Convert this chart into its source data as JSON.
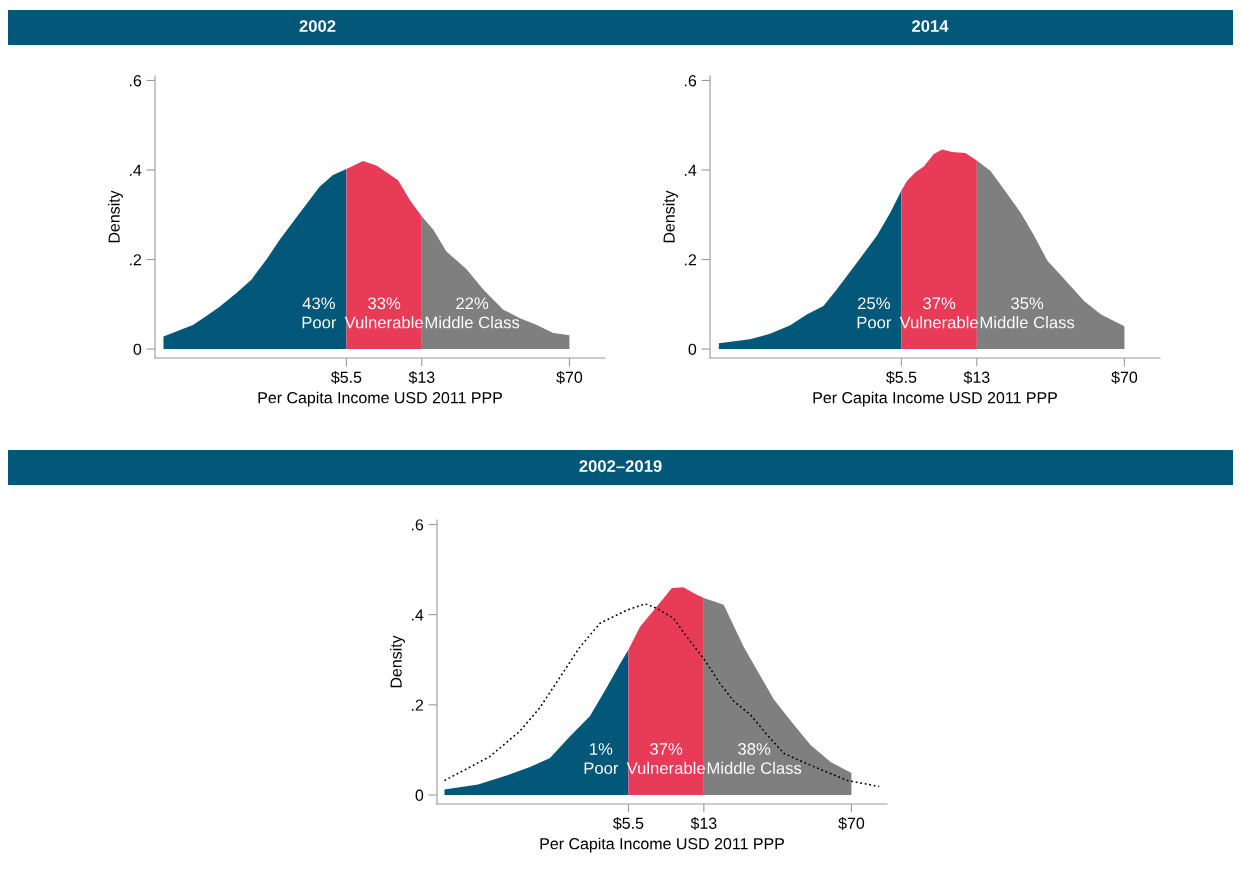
{
  "chart_data": [
    {
      "type": "area",
      "title": "2002",
      "xlabel": "Per Capita Income USD 2011 PPP",
      "ylabel": "Density",
      "log": "x",
      "xlim": [
        0.62,
        105
      ],
      "xticks": [
        {
          "value": 5.5,
          "label": "$5.5"
        },
        {
          "value": 13,
          "label": "$13"
        },
        {
          "value": 70,
          "label": "$70"
        }
      ],
      "ylim": [
        -0.02,
        0.61
      ],
      "yticks": [
        0,
        {
          "value": 0.2,
          "label": ".2"
        },
        {
          "value": 0.4,
          "label": ".4"
        },
        {
          "value": 0.6,
          "label": ".6"
        }
      ],
      "grid": false,
      "series": [
        {
          "color": "#03587a",
          "x": [
            0.683,
            0.955,
            1.11,
            1.29,
            1.57,
            1.86,
            2.21,
            2.57,
            3.23,
            4.06,
            4.72,
            5.5
          ],
          "values": [
            0.028,
            0.054,
            0.073,
            0.094,
            0.125,
            0.155,
            0.2,
            0.244,
            0.304,
            0.363,
            0.389,
            0.402
          ]
        },
        {
          "color": "#e83b57",
          "x": [
            5.5,
            6.65,
            7.75,
            9.92,
            11.3,
            13
          ],
          "values": [
            0.402,
            0.42,
            0.41,
            0.377,
            0.334,
            0.296
          ]
        },
        {
          "color": "#7f7f7f",
          "x": [
            13,
            14.8,
            17.2,
            21.6,
            26.2,
            32.9,
            39.8,
            48.2,
            58.2,
            70
          ],
          "values": [
            0.296,
            0.267,
            0.218,
            0.179,
            0.133,
            0.088,
            0.069,
            0.054,
            0.036,
            0.031
          ]
        }
      ],
      "annotations": [
        "43%\nPoor",
        "33%\nVulnerable",
        "22%\nMiddle Class"
      ]
    },
    {
      "type": "area",
      "title": "2014",
      "xlabel": "Per Capita Income USD 2011 PPP",
      "ylabel": "Density",
      "log": "x",
      "xlim": [
        0.62,
        105
      ],
      "xticks": [
        {
          "value": 5.5,
          "label": "$5.5"
        },
        {
          "value": 13,
          "label": "$13"
        },
        {
          "value": 70,
          "label": "$70"
        }
      ],
      "ylim": [
        -0.02,
        0.61
      ],
      "yticks": [
        0,
        {
          "value": 0.2,
          "label": ".2"
        },
        {
          "value": 0.4,
          "label": ".4"
        },
        {
          "value": 0.6,
          "label": ".6"
        }
      ],
      "grid": false,
      "series": [
        {
          "color": "#03587a",
          "x": [
            0.686,
            0.978,
            1.23,
            1.55,
            1.87,
            2.26,
            2.63,
            3.31,
            4.16,
            4.85,
            5.5
          ],
          "values": [
            0.013,
            0.022,
            0.034,
            0.053,
            0.077,
            0.096,
            0.133,
            0.193,
            0.253,
            0.305,
            0.354
          ]
        },
        {
          "color": "#e83b57",
          "x": [
            5.5,
            5.87,
            6.46,
            7.1,
            7.96,
            8.76,
            9.82,
            11.4,
            13
          ],
          "values": [
            0.354,
            0.376,
            0.395,
            0.408,
            0.436,
            0.446,
            0.44,
            0.438,
            0.421
          ]
        },
        {
          "color": "#7f7f7f",
          "x": [
            13,
            15.2,
            17.7,
            21.4,
            25.0,
            29.1,
            36.6,
            44.3,
            53.6,
            70
          ],
          "values": [
            0.421,
            0.398,
            0.357,
            0.305,
            0.253,
            0.197,
            0.148,
            0.107,
            0.077,
            0.051
          ]
        }
      ],
      "annotations": [
        "25%\nPoor",
        "37%\nVulnerable",
        "35%\nMiddle Class"
      ]
    },
    {
      "type": "area",
      "title": "2002–2019",
      "xlabel": "Per Capita Income USD 2011 PPP",
      "ylabel": "Density",
      "log": "x",
      "xlim": [
        0.62,
        105
      ],
      "xticks": [
        {
          "value": 5.5,
          "label": "$5.5"
        },
        {
          "value": 13,
          "label": "$13"
        },
        {
          "value": 70,
          "label": "$70"
        }
      ],
      "ylim": [
        -0.02,
        0.61
      ],
      "yticks": [
        0,
        {
          "value": 0.2,
          "label": ".2"
        },
        {
          "value": 0.4,
          "label": ".4"
        },
        {
          "value": 0.6,
          "label": ".6"
        }
      ],
      "grid": false,
      "series": [
        {
          "color": "#03587a",
          "x": [
            0.675,
            0.99,
            1.37,
            1.79,
            2.25,
            2.82,
            3.55,
            4.29,
            5.0,
            5.5
          ],
          "values": [
            0.012,
            0.023,
            0.043,
            0.062,
            0.082,
            0.13,
            0.175,
            0.238,
            0.291,
            0.322
          ]
        },
        {
          "color": "#e83b57",
          "x": [
            5.5,
            6.28,
            7.61,
            9.03,
            10.3,
            11.8,
            13
          ],
          "values": [
            0.322,
            0.373,
            0.418,
            0.459,
            0.461,
            0.446,
            0.437
          ]
        },
        {
          "color": "#7f7f7f",
          "x": [
            13,
            16.3,
            20.5,
            23.9,
            28.9,
            36.3,
            43.9,
            55.2,
            70
          ],
          "values": [
            0.437,
            0.422,
            0.328,
            0.276,
            0.212,
            0.156,
            0.111,
            0.073,
            0.049
          ]
        },
        {
          "type": "line",
          "line_style": "dotted",
          "color": "#000000",
          "x": [
            0.675,
            1.13,
            1.59,
            2.0,
            2.52,
            3.16,
            3.98,
            5.4,
            6.66,
            7.61,
            9.2,
            10.7,
            13.0,
            15.7,
            18.3,
            22.1,
            26.8,
            32.4,
            43.9,
            66.8,
            96.0
          ],
          "values": [
            0.032,
            0.085,
            0.141,
            0.193,
            0.261,
            0.328,
            0.381,
            0.41,
            0.424,
            0.414,
            0.392,
            0.351,
            0.302,
            0.246,
            0.208,
            0.178,
            0.133,
            0.092,
            0.066,
            0.032,
            0.019
          ]
        }
      ],
      "annotations": [
        "1%\nPoor",
        "37%\nVulnerable",
        "38%\nMiddle Class"
      ]
    }
  ]
}
